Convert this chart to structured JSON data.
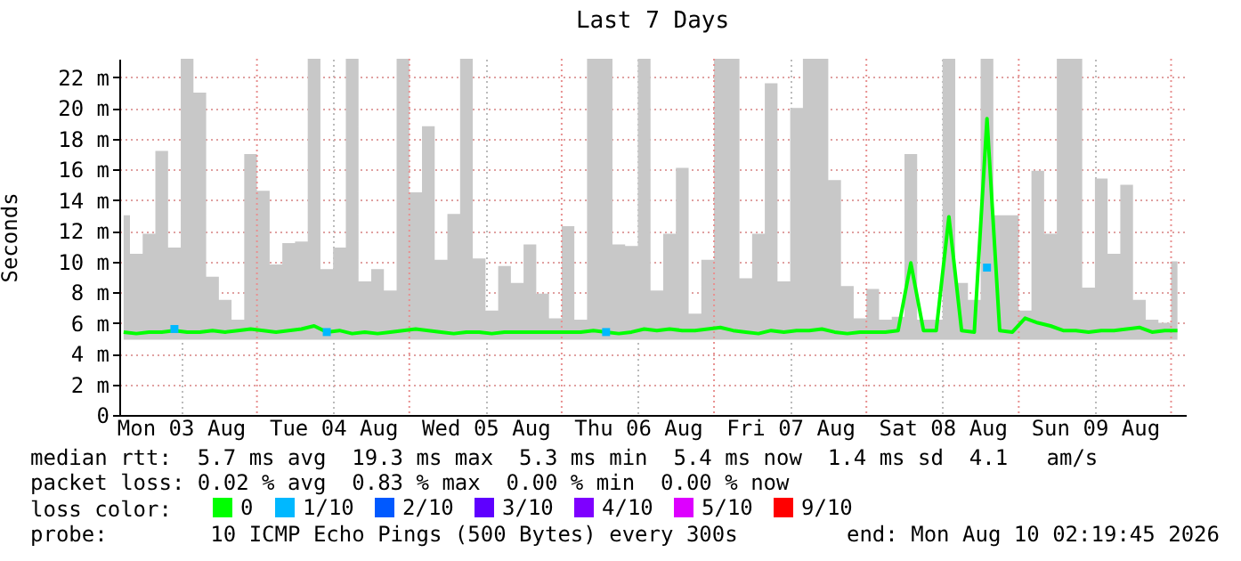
{
  "chart_data": {
    "type": "line",
    "title": "Last 7 Days",
    "ylabel": "Seconds",
    "x": [
      "2026-08-03T03:00",
      "2026-08-03T05:00",
      "2026-08-03T07:00",
      "2026-08-03T09:00",
      "2026-08-03T11:00",
      "2026-08-03T13:00",
      "2026-08-03T15:00",
      "2026-08-03T17:00",
      "2026-08-03T19:00",
      "2026-08-03T21:00",
      "2026-08-03T23:00",
      "2026-08-04T01:00",
      "2026-08-04T03:00",
      "2026-08-04T05:00",
      "2026-08-04T07:00",
      "2026-08-04T09:00",
      "2026-08-04T11:00",
      "2026-08-04T13:00",
      "2026-08-04T15:00",
      "2026-08-04T17:00",
      "2026-08-04T19:00",
      "2026-08-04T21:00",
      "2026-08-04T23:00",
      "2026-08-05T01:00",
      "2026-08-05T03:00",
      "2026-08-05T05:00",
      "2026-08-05T07:00",
      "2026-08-05T09:00",
      "2026-08-05T11:00",
      "2026-08-05T13:00",
      "2026-08-05T15:00",
      "2026-08-05T17:00",
      "2026-08-05T19:00",
      "2026-08-05T21:00",
      "2026-08-05T23:00",
      "2026-08-06T01:00",
      "2026-08-06T03:00",
      "2026-08-06T05:00",
      "2026-08-06T07:00",
      "2026-08-06T09:00",
      "2026-08-06T11:00",
      "2026-08-06T13:00",
      "2026-08-06T15:00",
      "2026-08-06T17:00",
      "2026-08-06T19:00",
      "2026-08-06T21:00",
      "2026-08-06T23:00",
      "2026-08-07T01:00",
      "2026-08-07T03:00",
      "2026-08-07T05:00",
      "2026-08-07T07:00",
      "2026-08-07T09:00",
      "2026-08-07T11:00",
      "2026-08-07T13:00",
      "2026-08-07T15:00",
      "2026-08-07T17:00",
      "2026-08-07T19:00",
      "2026-08-07T21:00",
      "2026-08-07T23:00",
      "2026-08-08T01:00",
      "2026-08-08T03:00",
      "2026-08-08T05:00",
      "2026-08-08T07:00",
      "2026-08-08T09:00",
      "2026-08-08T11:00",
      "2026-08-08T13:00",
      "2026-08-08T15:00",
      "2026-08-08T17:00",
      "2026-08-08T19:00",
      "2026-08-08T21:00",
      "2026-08-08T23:00",
      "2026-08-09T01:00",
      "2026-08-09T03:00",
      "2026-08-09T05:00",
      "2026-08-09T07:00",
      "2026-08-09T09:00",
      "2026-08-09T11:00",
      "2026-08-09T13:00",
      "2026-08-09T15:00",
      "2026-08-09T17:00",
      "2026-08-09T19:00",
      "2026-08-09T21:00",
      "2026-08-09T23:00",
      "2026-08-10T01:00"
    ],
    "series": [
      {
        "name": "0",
        "color": "#00ff00",
        "marker": "none",
        "values": [
          5.4,
          5.3,
          5.4,
          5.4,
          5.5,
          5.4,
          5.4,
          5.5,
          5.4,
          5.5,
          5.6,
          5.5,
          5.4,
          5.5,
          5.6,
          5.8,
          5.4,
          5.5,
          5.3,
          5.4,
          5.3,
          5.4,
          5.5,
          5.6,
          5.5,
          5.4,
          5.3,
          5.4,
          5.4,
          5.3,
          5.4,
          5.4,
          5.4,
          5.4,
          5.4,
          5.4,
          5.4,
          5.5,
          5.4,
          5.3,
          5.4,
          5.6,
          5.5,
          5.6,
          5.5,
          5.5,
          5.6,
          5.7,
          5.5,
          5.4,
          5.3,
          5.5,
          5.4,
          5.5,
          5.5,
          5.6,
          5.4,
          5.3,
          5.4,
          5.4,
          5.4,
          5.5,
          9.9,
          5.5,
          5.5,
          12.9,
          5.5,
          5.4,
          19.3,
          5.5,
          5.4,
          6.3,
          6.0,
          5.8,
          5.5,
          5.5,
          5.4,
          5.5,
          5.5,
          5.6,
          5.7,
          5.4,
          5.5,
          5.5
        ],
        "lower": [
          4.9,
          4.9,
          4.9,
          4.9,
          4.9,
          4.9,
          4.9,
          4.9,
          4.9,
          4.9,
          4.9,
          4.9,
          4.9,
          4.9,
          4.9,
          4.9,
          4.9,
          4.9,
          4.9,
          4.9,
          4.9,
          4.9,
          4.9,
          4.9,
          4.9,
          4.9,
          4.9,
          4.9,
          4.9,
          4.9,
          4.9,
          4.9,
          4.9,
          4.9,
          4.9,
          4.9,
          4.9,
          4.9,
          4.9,
          4.9,
          4.9,
          4.9,
          4.9,
          4.9,
          4.9,
          4.9,
          4.9,
          4.9,
          4.9,
          4.9,
          4.9,
          4.9,
          4.9,
          4.9,
          4.9,
          4.9,
          4.9,
          4.9,
          4.9,
          4.9,
          4.9,
          4.9,
          4.9,
          4.9,
          4.9,
          4.9,
          4.9,
          4.9,
          4.9,
          4.9,
          4.9,
          4.9,
          4.9,
          4.9,
          4.9,
          4.9,
          4.9,
          4.9,
          4.9,
          4.9,
          4.9,
          4.9,
          4.9,
          4.9
        ],
        "upper": [
          13,
          10.5,
          11.8,
          17.2,
          10.9,
          23.2,
          21,
          9,
          7.5,
          6.2,
          17,
          14.6,
          9.8,
          11.2,
          11.3,
          23.2,
          9.5,
          10.9,
          23.2,
          8.7,
          9.5,
          8.1,
          23.2,
          14.5,
          18.8,
          10.1,
          13.1,
          23.2,
          10.2,
          6.8,
          9.7,
          8.6,
          11.1,
          7.9,
          6.3,
          12.3,
          6.2,
          23.2,
          23.2,
          11.1,
          11,
          23.2,
          8.1,
          11.8,
          16.1,
          6.6,
          10.1,
          23.2,
          23.2,
          8.9,
          11.8,
          21.6,
          8.7,
          20,
          23.2,
          23.2,
          15.3,
          8.4,
          6.3,
          8.2,
          6.2,
          6.4,
          17,
          6.2,
          6.2,
          23.2,
          8.6,
          7.5,
          23.2,
          13,
          13,
          6.8,
          15.9,
          11.8,
          23.2,
          23.2,
          8.3,
          15.4,
          10.5,
          15,
          7.5,
          6.2,
          6,
          10
        ]
      },
      {
        "name": "1/10",
        "type": "scatter",
        "color": "#00b8ff",
        "values": [
          null,
          null,
          null,
          null,
          5.6,
          null,
          null,
          null,
          null,
          null,
          null,
          null,
          null,
          null,
          null,
          null,
          5.4,
          null,
          null,
          null,
          null,
          null,
          null,
          null,
          null,
          null,
          null,
          null,
          null,
          null,
          null,
          null,
          null,
          null,
          null,
          null,
          null,
          null,
          5.4,
          null,
          null,
          null,
          null,
          null,
          null,
          null,
          null,
          null,
          null,
          null,
          null,
          null,
          null,
          null,
          null,
          null,
          null,
          null,
          null,
          null,
          null,
          null,
          null,
          null,
          null,
          null,
          null,
          null,
          9.6,
          null,
          null,
          null,
          null,
          null,
          null,
          null,
          null,
          null,
          null,
          null,
          null,
          null,
          null,
          null
        ]
      },
      {
        "name": "2/10",
        "type": "scatter",
        "color": "#0059ff",
        "values": [
          null,
          null,
          null,
          null,
          null,
          null,
          null,
          null,
          null,
          null,
          null,
          null,
          null,
          null,
          null,
          null,
          null,
          null,
          null,
          null,
          null,
          null,
          null,
          null,
          null,
          null,
          null,
          null,
          null,
          null,
          null,
          null,
          null,
          null,
          null,
          null,
          null,
          null,
          null,
          null,
          null,
          null,
          null,
          null,
          null,
          null,
          null,
          null,
          null,
          null,
          null,
          null,
          null,
          null,
          null,
          null,
          null,
          null,
          null,
          null,
          null,
          null,
          null,
          null,
          null,
          null,
          null,
          null,
          null,
          null,
          null,
          null,
          null,
          null,
          null,
          null,
          null,
          null,
          null,
          null,
          null,
          null,
          null,
          null
        ]
      },
      {
        "name": "3/10",
        "type": "scatter",
        "color": "#5e00ff",
        "values": [
          null,
          null,
          null,
          null,
          null,
          null,
          null,
          null,
          null,
          null,
          null,
          null,
          null,
          null,
          null,
          null,
          null,
          null,
          null,
          null,
          null,
          null,
          null,
          null,
          null,
          null,
          null,
          null,
          null,
          null,
          null,
          null,
          null,
          null,
          null,
          null,
          null,
          null,
          null,
          null,
          null,
          null,
          null,
          null,
          null,
          null,
          null,
          null,
          null,
          null,
          null,
          null,
          null,
          null,
          null,
          null,
          null,
          null,
          null,
          null,
          null,
          null,
          null,
          null,
          null,
          null,
          null,
          null,
          null,
          null,
          null,
          null,
          null,
          null,
          null,
          null,
          null,
          null,
          null,
          null,
          null,
          null,
          null,
          null
        ]
      },
      {
        "name": "4/10",
        "type": "scatter",
        "color": "#7e00ff",
        "values": [
          null,
          null,
          null,
          null,
          null,
          null,
          null,
          null,
          null,
          null,
          null,
          null,
          null,
          null,
          null,
          null,
          null,
          null,
          null,
          null,
          null,
          null,
          null,
          null,
          null,
          null,
          null,
          null,
          null,
          null,
          null,
          null,
          null,
          null,
          null,
          null,
          null,
          null,
          null,
          null,
          null,
          null,
          null,
          null,
          null,
          null,
          null,
          null,
          null,
          null,
          null,
          null,
          null,
          null,
          null,
          null,
          null,
          null,
          null,
          null,
          null,
          null,
          null,
          null,
          null,
          null,
          null,
          null,
          null,
          null,
          null,
          null,
          null,
          null,
          null,
          null,
          null,
          null,
          null,
          null,
          null,
          null,
          null,
          null
        ]
      },
      {
        "name": "5/10",
        "type": "scatter",
        "color": "#dd00ff",
        "values": [
          null,
          null,
          null,
          null,
          null,
          null,
          null,
          null,
          null,
          null,
          null,
          null,
          null,
          null,
          null,
          null,
          null,
          null,
          null,
          null,
          null,
          null,
          null,
          null,
          null,
          null,
          null,
          null,
          null,
          null,
          null,
          null,
          null,
          null,
          null,
          null,
          null,
          null,
          null,
          null,
          null,
          null,
          null,
          null,
          null,
          null,
          null,
          null,
          null,
          null,
          null,
          null,
          null,
          null,
          null,
          null,
          null,
          null,
          null,
          null,
          null,
          null,
          null,
          null,
          null,
          null,
          null,
          null,
          null,
          null,
          null,
          null,
          null,
          null,
          null,
          null,
          null,
          null,
          null,
          null,
          null,
          null,
          null,
          null
        ]
      },
      {
        "name": "9/10",
        "type": "scatter",
        "color": "#ff0000",
        "values": [
          null,
          null,
          null,
          null,
          null,
          null,
          null,
          null,
          null,
          null,
          null,
          null,
          null,
          null,
          null,
          null,
          null,
          null,
          null,
          null,
          null,
          null,
          null,
          null,
          null,
          null,
          null,
          null,
          null,
          null,
          null,
          null,
          null,
          null,
          null,
          null,
          null,
          null,
          null,
          null,
          null,
          null,
          null,
          null,
          null,
          null,
          null,
          null,
          null,
          null,
          null,
          null,
          null,
          null,
          null,
          null,
          null,
          null,
          null,
          null,
          null,
          null,
          null,
          null,
          null,
          null,
          null,
          null,
          null,
          null,
          null,
          null,
          null,
          null,
          null,
          null,
          null,
          null,
          null,
          null,
          null,
          null,
          null,
          null
        ]
      }
    ],
    "legend_title": "loss color:",
    "legend": "bottom",
    "marker": "square",
    "grid": true,
    "xlim": [
      "2026-08-03T02:19",
      "2026-08-10T02:19"
    ],
    "xticks": [
      {
        "value": "2026-08-03T12:00",
        "label": "Mon 03 Aug"
      },
      {
        "value": "2026-08-04T12:00",
        "label": "Tue 04 Aug"
      },
      {
        "value": "2026-08-05T12:00",
        "label": "Wed 05 Aug"
      },
      {
        "value": "2026-08-06T12:00",
        "label": "Thu 06 Aug"
      },
      {
        "value": "2026-08-07T12:00",
        "label": "Fri 07 Aug"
      },
      {
        "value": "2026-08-08T12:00",
        "label": "Sat 08 Aug"
      },
      {
        "value": "2026-08-09T12:00",
        "label": "Sun 09 Aug"
      }
    ],
    "ylim": [
      0,
      23.2
    ],
    "yticks": [
      0,
      {
        "value": 2,
        "label": "2 m"
      },
      {
        "value": 4,
        "label": "4 m"
      },
      {
        "value": 6,
        "label": "6 m"
      },
      {
        "value": 8,
        "label": "8 m"
      },
      {
        "value": 10,
        "label": "10 m"
      },
      {
        "value": 12,
        "label": "12 m"
      },
      {
        "value": 14,
        "label": "14 m"
      },
      {
        "value": 16,
        "label": "16 m"
      },
      {
        "value": 18,
        "label": "18 m"
      },
      {
        "value": 20,
        "label": "20 m"
      },
      {
        "value": 22,
        "label": "22 m"
      }
    ],
    "ref_lines": [
      {
        "axis": "x",
        "value": "2026-08-04T00:00",
        "color": "#e89090",
        "line_style": "dotted"
      },
      {
        "axis": "x",
        "value": "2026-08-05T00:00",
        "color": "#e89090",
        "line_style": "dotted"
      },
      {
        "axis": "x",
        "value": "2026-08-06T00:00",
        "color": "#e89090",
        "line_style": "dotted"
      },
      {
        "axis": "x",
        "value": "2026-08-07T00:00",
        "color": "#e89090",
        "line_style": "dotted"
      },
      {
        "axis": "x",
        "value": "2026-08-08T00:00",
        "color": "#e89090",
        "line_style": "dotted"
      },
      {
        "axis": "x",
        "value": "2026-08-09T00:00",
        "color": "#e89090",
        "line_style": "dotted"
      },
      {
        "axis": "x",
        "value": "2026-08-10T00:00",
        "color": "#e89090",
        "line_style": "dotted"
      }
    ],
    "annotations": [
      "median rtt:  5.7 ms avg  19.3 ms max  5.3 ms min  5.4 ms now  1.4 ms sd  4.1   am/s",
      "packet loss: 0.02 % avg  0.83 % max  0.00 % min  0.00 % now",
      "probe:        10 ICMP Echo Pings (500 Bytes) every 300s",
      "end: Mon Aug 10 02:19:45 2026"
    ]
  }
}
